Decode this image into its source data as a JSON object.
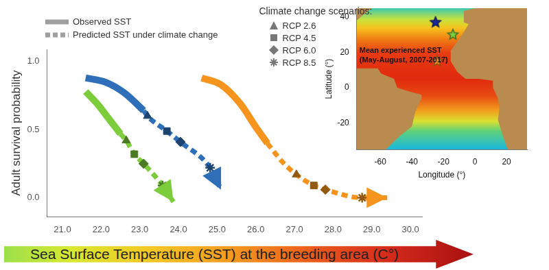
{
  "chart_data": [
    {
      "type": "line",
      "ylabel": "Adult survival probability",
      "xlabel": "Sea Surface Temperature (SST) at the breeding area (C°)",
      "xlim": [
        20.6,
        30.3
      ],
      "xticks": [
        {
          "value": 21,
          "label": "21.0"
        },
        {
          "value": 22,
          "label": "22.0"
        },
        {
          "value": 23,
          "label": "23.0"
        },
        {
          "value": 24,
          "label": "24.0"
        },
        {
          "value": 25,
          "label": "25.0"
        },
        {
          "value": 26,
          "label": "26.0"
        },
        {
          "value": 27,
          "label": "27.0"
        },
        {
          "value": 28,
          "label": "28.0"
        },
        {
          "value": 29,
          "label": "29.0"
        },
        {
          "value": 30,
          "label": "30.0"
        }
      ],
      "ylim": [
        -0.14,
        1.09
      ],
      "yticks": [
        {
          "value": 0,
          "label": "0.0"
        },
        {
          "value": 0.5,
          "label": "0.5"
        },
        {
          "value": 1,
          "label": "1.0"
        }
      ],
      "grid": false,
      "legend": "top-left",
      "scenarios": {
        "title": "Climate change scenarios:",
        "names": [
          "RCP 2.6",
          "RCP 4.5",
          "RCP 6.0",
          "RCP 8.5"
        ],
        "markers": [
          "triangle",
          "square",
          "diamond",
          "asterisk"
        ]
      },
      "series": [
        {
          "name": "Observed SST",
          "line_style": "solid",
          "color": "#7ccc3c",
          "x": [
            21.6,
            21.9,
            22.2,
            22.5
          ],
          "values": [
            0.78,
            0.69,
            0.58,
            0.47
          ]
        },
        {
          "name": "Predicted SST under climate change",
          "line_style": "dashed",
          "color": "#7ccc3c",
          "x": [
            22.5,
            22.65,
            22.86,
            23.1,
            23.59,
            23.87
          ],
          "values": [
            0.47,
            0.42,
            0.32,
            0.25,
            0.09,
            -0.03
          ],
          "marker": [
            null,
            "triangle",
            "square",
            "diamond",
            "asterisk",
            null
          ]
        },
        {
          "name": "Observed SST",
          "line_style": "solid",
          "color": "#2f6fba",
          "x": [
            21.6,
            22.1,
            22.6,
            23.1
          ],
          "values": [
            0.88,
            0.85,
            0.77,
            0.64
          ]
        },
        {
          "name": "Predicted SST under climate change",
          "line_style": "dashed",
          "color": "#2f6fba",
          "x": [
            23.1,
            23.2,
            23.7,
            24.05,
            24.82,
            25.1
          ],
          "values": [
            0.64,
            0.6,
            0.49,
            0.41,
            0.22,
            0.06
          ],
          "marker": [
            null,
            "triangle",
            "square",
            "diamond",
            "asterisk",
            null
          ]
        },
        {
          "name": "Observed SST",
          "line_style": "solid",
          "color": "#f7941d",
          "x": [
            24.6,
            25.1,
            25.6,
            26.0,
            26.3
          ],
          "values": [
            0.88,
            0.83,
            0.69,
            0.52,
            0.4
          ]
        },
        {
          "name": "Predicted SST under climate change",
          "line_style": "dashed",
          "color": "#f7941d",
          "x": [
            26.3,
            26.7,
            27.05,
            27.5,
            27.8,
            28.75,
            29.4
          ],
          "values": [
            0.4,
            0.26,
            0.17,
            0.09,
            0.06,
            0.0,
            0.0
          ],
          "marker": [
            null,
            null,
            "triangle",
            "square",
            "diamond",
            "asterisk",
            null
          ]
        }
      ]
    },
    {
      "type": "scatter",
      "annotations": [
        "Mean experienced SST",
        "(May-August, 2007-2017)"
      ],
      "xlabel": "Longitude (°)",
      "ylabel": "Latitude (°)",
      "xlim": [
        -75,
        33
      ],
      "ylim": [
        -35,
        45
      ],
      "xticks": [
        -60,
        -40,
        -20,
        0,
        20
      ],
      "yticks": [
        -20,
        0,
        20,
        40
      ],
      "grid": false,
      "series": [
        {
          "x": [
            -25,
            -14,
            -24
          ],
          "values": [
            37,
            30,
            15
          ],
          "colors": [
            "#1c2a9c",
            "#7ccc3c",
            "#f7941d"
          ],
          "marker": "star"
        }
      ]
    }
  ]
}
